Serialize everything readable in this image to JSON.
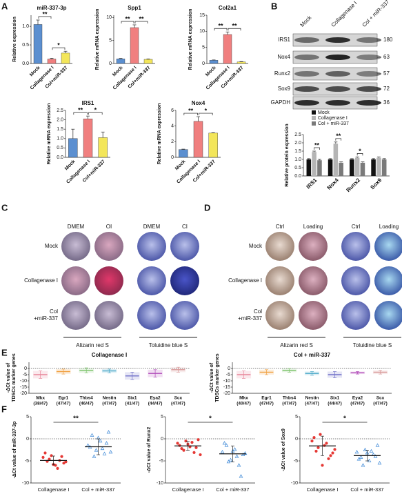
{
  "panel_labels": [
    "A",
    "B",
    "C",
    "D",
    "E",
    "F"
  ],
  "chart_data": [
    {
      "type": "bar",
      "title": "miR-337-3p",
      "y_label": "Relative expression",
      "categories": [
        "Mock",
        "Collagenase I",
        "Col+miR-337"
      ],
      "values": [
        1.05,
        0.12,
        0.28
      ],
      "errors": [
        0.12,
        0.02,
        0.05
      ],
      "colors": [
        "#5b8fd0",
        "#f07f7f",
        "#f3e65a"
      ],
      "ylim": [
        0,
        1.3
      ],
      "yticks": [
        {
          "value": 0,
          "label": "0.0"
        },
        {
          "value": 0.5,
          "label": "0.5"
        },
        {
          "value": 1,
          "label": "1.0"
        }
      ],
      "annotations": [
        "**",
        "*"
      ]
    },
    {
      "type": "bar",
      "title": "Spp1",
      "y_label": "Relative mRNA expression",
      "categories": [
        "Mock",
        "Collagenase I",
        "Col+miR-337"
      ],
      "values": [
        1.0,
        7.8,
        0.9
      ],
      "errors": [
        0.1,
        0.6,
        0.1
      ],
      "colors": [
        "#5b8fd0",
        "#f07f7f",
        "#f3e65a"
      ],
      "ylim": [
        0,
        10.5
      ],
      "yticks": [
        0,
        5,
        10
      ],
      "annotations": [
        "**",
        "**"
      ]
    },
    {
      "type": "bar",
      "title": "Col2a1",
      "y_label": "Relative mRNA expression",
      "categories": [
        "Mock",
        "Collagenase I",
        "Col+miR-337"
      ],
      "values": [
        1.0,
        9.0,
        0.5
      ],
      "errors": [
        0.1,
        0.8,
        0.1
      ],
      "colors": [
        "#5b8fd0",
        "#f07f7f",
        "#f3e65a"
      ],
      "ylim": [
        0,
        15
      ],
      "yticks": [
        0,
        5,
        10,
        15
      ],
      "annotations": [
        "**",
        "**"
      ]
    },
    {
      "type": "bar",
      "title": "IRS1",
      "y_label": "Relative mRNA expression",
      "categories": [
        "Mock",
        "Collagenase I",
        "Col+miR-337"
      ],
      "values": [
        1.0,
        2.05,
        1.05
      ],
      "errors": [
        0.5,
        0.15,
        0.3
      ],
      "colors": [
        "#5b8fd0",
        "#f07f7f",
        "#f3e65a"
      ],
      "ylim": [
        0,
        2.5
      ],
      "yticks": [
        {
          "value": 0,
          "label": "0.0"
        },
        {
          "value": 0.5,
          "label": "0.5"
        },
        {
          "value": 1,
          "label": "1.0"
        },
        {
          "value": 1.5,
          "label": "1.5"
        },
        {
          "value": 2,
          "label": "2.0"
        },
        {
          "value": 2.5,
          "label": "2.5"
        }
      ],
      "annotations": [
        "**",
        "*"
      ]
    },
    {
      "type": "bar",
      "title": "Nox4",
      "y_label": "Relative mRNA expression",
      "categories": [
        "Mock",
        "Collagenase I",
        "Col+miR-337"
      ],
      "values": [
        1.0,
        4.6,
        3.1
      ],
      "errors": [
        0.05,
        0.6,
        0.05
      ],
      "colors": [
        "#5b8fd0",
        "#f07f7f",
        "#f3e65a"
      ],
      "ylim": [
        0,
        6
      ],
      "yticks": [
        0,
        2,
        4,
        6
      ],
      "annotations": [
        "**",
        "*"
      ]
    },
    {
      "type": "bar",
      "y_label": "Relative protein expression",
      "categories": [
        "IRS1",
        "Nox4",
        "Runx2",
        "Sox9"
      ],
      "series": [
        {
          "name": "Mock",
          "color": "#111111",
          "values": [
            1.0,
            1.0,
            1.0,
            1.0
          ],
          "errors": [
            0.05,
            0.05,
            0.05,
            0.05
          ]
        },
        {
          "name": "Collagenase I",
          "color": "#b5b5b5",
          "values": [
            1.45,
            1.95,
            1.1,
            1.1
          ],
          "errors": [
            0.05,
            0.1,
            0.05,
            0.05
          ]
        },
        {
          "name": "Col + miR-337",
          "color": "#7a7a7a",
          "values": [
            0.95,
            0.8,
            0.8,
            1.0
          ],
          "errors": [
            0.05,
            0.05,
            0.05,
            0.05
          ]
        }
      ],
      "ylim": [
        0,
        2.5
      ],
      "yticks": [
        {
          "value": 0,
          "label": "0.0"
        },
        {
          "value": 0.5,
          "label": "0.5"
        },
        {
          "value": 1,
          "label": "1.0"
        },
        {
          "value": 1.5,
          "label": "1.5"
        },
        {
          "value": 2,
          "label": "2.0"
        },
        {
          "value": 2.5,
          "label": "2.5"
        }
      ],
      "annotations": [
        "**",
        "**",
        "*"
      ]
    },
    {
      "type": "errorbar",
      "title": "Collagenase I",
      "y_label_lines": [
        "-ΔCt value of",
        "TDSCs marker genes"
      ],
      "categories": [
        "Mkx",
        "Egr1",
        "Thbs4",
        "Nestin",
        "Six1",
        "Eya2",
        "Scx"
      ],
      "counts": [
        "(38/47)",
        "(47/47)",
        "(46/47)",
        "(47/47)",
        "(41/47)",
        "(44/47)",
        "(47/47)"
      ],
      "values": [
        -5,
        -2.5,
        -1.5,
        -2,
        -6,
        -4,
        -1
      ],
      "errors": [
        3,
        2,
        2,
        1.5,
        3,
        3,
        2
      ],
      "colors": [
        "#e8869a",
        "#f0a040",
        "#7cc36b",
        "#4aa8c8",
        "#7070c8",
        "#b04ab8",
        "#d89898"
      ],
      "ylim": [
        -20,
        5
      ],
      "yticks": [
        -20,
        -15,
        -10,
        -5,
        0
      ],
      "hline": 0
    },
    {
      "type": "errorbar",
      "title": "Col + miR-337",
      "y_label_lines": [
        "-ΔCt value of",
        "TDSCs marker genes"
      ],
      "categories": [
        "Mkx",
        "Egr1",
        "Thbs4",
        "Nestin",
        "Six1",
        "Eya2",
        "Scx"
      ],
      "counts": [
        "(40/47)",
        "(47/47)",
        "(47/47)",
        "(47/47)",
        "(44/47)",
        "(47/47)",
        "(47/47)"
      ],
      "values": [
        -5,
        -3,
        -1.5,
        -4,
        -5,
        -3.5,
        -3
      ],
      "errors": [
        3,
        2,
        1.5,
        1.5,
        2.5,
        1,
        1.5
      ],
      "colors": [
        "#e8869a",
        "#f0a040",
        "#7cc36b",
        "#4aa8c8",
        "#7070c8",
        "#b04ab8",
        "#d89898"
      ],
      "ylim": [
        -20,
        5
      ],
      "yticks": [
        -20,
        -15,
        -10,
        -5,
        0
      ],
      "hline": 0
    },
    {
      "type": "dot",
      "y_label": "-ΔCt value of miR-337-3p",
      "categories": [
        "Collagenase I",
        "Col + miR-337"
      ],
      "points": [
        [
          -4.2,
          -5.1,
          -3.8,
          -6.0,
          -4.9,
          -5.5,
          -3.2,
          -4.6,
          -5.8,
          -6.7,
          -4.0,
          -5.2
        ],
        [
          -1.5,
          0.8,
          -2.6,
          -0.5,
          -3.4,
          1.5,
          -1.9,
          -4.0,
          0.2,
          -2.2,
          -1.0,
          -3.0
        ]
      ],
      "means": [
        -4.9,
        -1.8
      ],
      "errors": [
        1.0,
        1.8
      ],
      "colors": [
        "#e53935",
        "#4a90d9"
      ],
      "markers": [
        "circle",
        "triangle"
      ],
      "ylim": [
        -10,
        5
      ],
      "yticks": [
        -10,
        -5,
        0,
        5
      ],
      "hline": 0,
      "annotations": [
        "**"
      ]
    },
    {
      "type": "dot",
      "y_label": "-ΔCt value of Runx2",
      "categories": [
        "Collagenase I",
        "Col + miR-337"
      ],
      "points": [
        [
          -1.0,
          -2.2,
          -0.5,
          -1.8,
          -3.1,
          -0.2,
          -1.5,
          -2.6,
          -1.2,
          -0.8,
          -2.0,
          -3.6
        ],
        [
          -3.0,
          -1.5,
          -4.8,
          -2.4,
          -6.0,
          -3.6,
          -1.0,
          -5.2,
          -2.8,
          -4.0,
          -8.5,
          -3.3
        ]
      ],
      "means": [
        -1.6,
        -3.4
      ],
      "errors": [
        1.0,
        1.8
      ],
      "colors": [
        "#e53935",
        "#4a90d9"
      ],
      "markers": [
        "circle",
        "triangle"
      ],
      "ylim": [
        -10,
        5
      ],
      "yticks": [
        -10,
        -5,
        0,
        5
      ],
      "hline": 0,
      "annotations": [
        "*"
      ]
    },
    {
      "type": "dot",
      "y_label": "-ΔCt value of Sox9",
      "categories": [
        "Collagenase I",
        "Col + miR-337"
      ],
      "points": [
        [
          -0.5,
          -2.8,
          1.0,
          -1.5,
          -4.5,
          -3.2,
          0.3,
          -2.0,
          -6.0,
          -1.0,
          -3.8,
          -2.4
        ],
        [
          -3.0,
          -4.2,
          -2.5,
          -5.0,
          -3.6,
          -1.5,
          -4.6,
          -6.0,
          -3.2,
          -2.8,
          -4.0,
          -5.5
        ]
      ],
      "means": [
        -1.6,
        -3.8
      ],
      "errors": [
        2.2,
        1.2
      ],
      "colors": [
        "#e53935",
        "#4a90d9"
      ],
      "markers": [
        "circle",
        "triangle"
      ],
      "ylim": [
        -10,
        5
      ],
      "yticks": [
        -10,
        -5,
        0,
        5
      ],
      "hline": 0,
      "annotations": [
        "*"
      ]
    }
  ],
  "blot": {
    "columns": [
      "Mock",
      "Collagenase I",
      "Col + miR-337"
    ],
    "rows": [
      {
        "protein": "IRS1",
        "size": 180
      },
      {
        "protein": "Nox4",
        "size": 63
      },
      {
        "protein": "Runx2",
        "size": 57
      },
      {
        "protein": "Sox9",
        "size": 72
      },
      {
        "protein": "GAPDH",
        "size": 36
      }
    ]
  },
  "stain_panels": [
    {
      "columns": [
        "DMEM",
        "OI",
        "DMEM",
        "CI"
      ],
      "rows": [
        [
          "Mock"
        ],
        [
          "Collagenase I"
        ],
        [
          "Col",
          "+miR-337"
        ]
      ],
      "stains": [
        "Alizarin red S",
        "Toluidine blue S"
      ]
    },
    {
      "columns": [
        "Ctrl",
        "Loading",
        "Ctrl",
        "Loading"
      ],
      "rows": [
        [
          "Mock"
        ],
        [
          "Collagenase I"
        ],
        [
          "Col",
          "+miR-337"
        ]
      ],
      "stains": [
        "Alizarin red S",
        "Toluidine blue S"
      ]
    }
  ]
}
